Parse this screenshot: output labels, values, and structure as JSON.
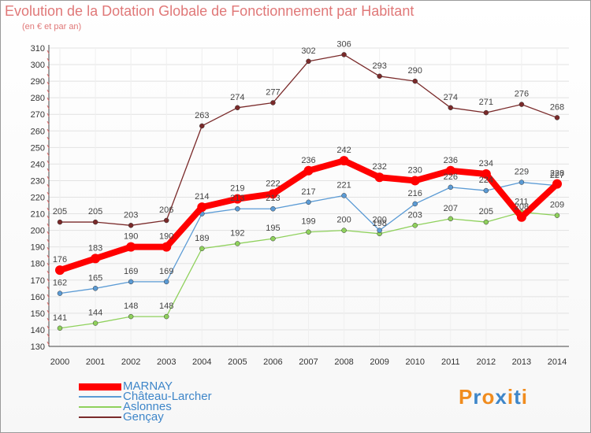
{
  "header": {
    "title": "Evolution de la Dotation Globale de Fonctionnement par Habitant",
    "subtitle": "(en € et par an)"
  },
  "logo": {
    "text": "Proxiti",
    "letters": [
      "P",
      "r",
      "o",
      "x",
      "i",
      "t",
      "i"
    ],
    "colors": [
      "#f08c1e",
      "#3e86c9",
      "#f08c1e",
      "#3e86c9",
      "#f08c1e",
      "#3e86c9",
      "#f08c1e"
    ]
  },
  "chart_data": {
    "type": "line",
    "title": "Evolution de la Dotation Globale de Fonctionnement par Habitant",
    "subtitle": "(en € et par an)",
    "xlabel": "",
    "ylabel": "",
    "x": [
      "2000",
      "2001",
      "2002",
      "2003",
      "2004",
      "2005",
      "2006",
      "2007",
      "2008",
      "2009",
      "2010",
      "2011",
      "2012",
      "2013",
      "2014"
    ],
    "ylim": [
      130,
      310
    ],
    "yticks": [
      130,
      140,
      150,
      160,
      170,
      180,
      190,
      200,
      210,
      220,
      230,
      240,
      250,
      260,
      270,
      280,
      290,
      300,
      310
    ],
    "grid": true,
    "legend_position": "bottom-left",
    "series": [
      {
        "name": "MARNAY",
        "color": "#ff0000",
        "values": [
          176,
          183,
          190,
          190,
          214,
          219,
          222,
          236,
          242,
          232,
          230,
          236,
          234,
          208,
          228
        ],
        "labels": [
          "176",
          "183",
          "190",
          "190",
          "214",
          "219",
          "222",
          "236",
          "242",
          "232",
          "230",
          "236",
          "234",
          "208",
          "228"
        ]
      },
      {
        "name": "Château-Larcher",
        "color": "#5b9bd5",
        "values": [
          162,
          165,
          169,
          169,
          210,
          213,
          213,
          217,
          221,
          200,
          216,
          226,
          224,
          229,
          227
        ],
        "labels": [
          "162",
          "165",
          "169",
          "169",
          "",
          "213",
          "213",
          "217",
          "221",
          "200",
          "216",
          "226",
          "224",
          "229",
          "227"
        ]
      },
      {
        "name": "Aslonnes",
        "color": "#8fd15c",
        "values": [
          141,
          144,
          148,
          148,
          189,
          192,
          195,
          199,
          200,
          198,
          203,
          207,
          205,
          211,
          209
        ],
        "labels": [
          "141",
          "144",
          "148",
          "148",
          "189",
          "192",
          "195",
          "199",
          "200",
          "198",
          "203",
          "207",
          "205",
          "211",
          "209"
        ]
      },
      {
        "name": "Gençay",
        "color": "#7a2a2a",
        "values": [
          205,
          205,
          203,
          206,
          263,
          274,
          277,
          302,
          306,
          293,
          290,
          274,
          271,
          276,
          268
        ],
        "labels": [
          "205",
          "205",
          "203",
          "206",
          "263",
          "274",
          "277",
          "302",
          "306",
          "293",
          "290",
          "274",
          "271",
          "276",
          "268"
        ]
      }
    ]
  }
}
